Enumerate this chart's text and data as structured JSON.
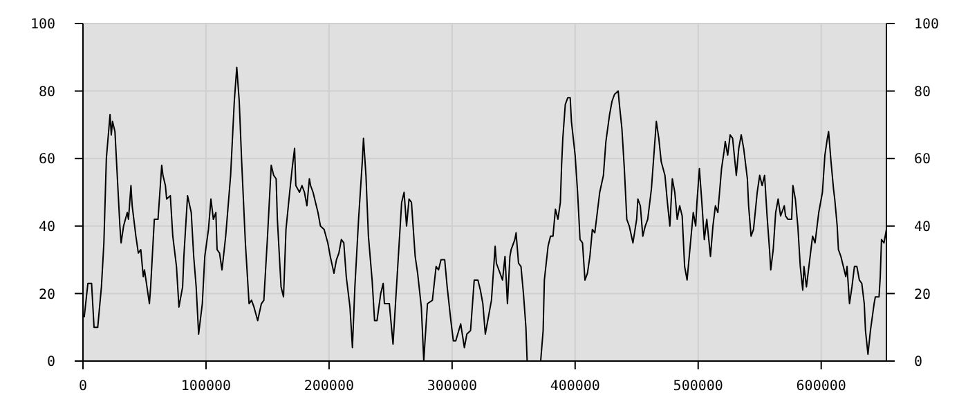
{
  "chart_data": {
    "type": "line",
    "color": "#000000",
    "marker": "none",
    "line_style": "solid",
    "grid": true,
    "xlim": [
      0,
      653000
    ],
    "xticks": [
      0,
      100000,
      200000,
      300000,
      400000,
      500000,
      600000
    ],
    "ylim": [
      0,
      100
    ],
    "yticks": [
      0,
      20,
      40,
      60,
      80,
      100
    ],
    "y2lim": [
      0,
      100
    ],
    "y2ticks": [
      0,
      20,
      40,
      60,
      80,
      100
    ],
    "x": [
      1000,
      4000,
      7000,
      9000,
      12000,
      15000,
      17000,
      19000,
      22000,
      23000,
      24000,
      26000,
      28000,
      30000,
      31000,
      33000,
      36000,
      37000,
      39000,
      40000,
      43000,
      45000,
      47000,
      49000,
      50000,
      52000,
      54000,
      55000,
      58000,
      61000,
      64000,
      65000,
      67000,
      68000,
      71000,
      73000,
      76000,
      78000,
      81000,
      82000,
      85000,
      88000,
      90000,
      92000,
      94000,
      97000,
      99000,
      102000,
      104000,
      106000,
      108000,
      109000,
      111000,
      113000,
      116000,
      120000,
      123000,
      125000,
      127000,
      129000,
      132000,
      135000,
      137000,
      139000,
      142000,
      145000,
      147000,
      150000,
      153000,
      155000,
      157000,
      158000,
      161000,
      163000,
      165000,
      168000,
      170000,
      172000,
      173000,
      176000,
      178000,
      180000,
      182000,
      184000,
      185000,
      187000,
      191000,
      193000,
      196000,
      199000,
      201000,
      204000,
      206000,
      208000,
      210000,
      212000,
      214000,
      217000,
      219000,
      221000,
      224000,
      227000,
      228000,
      230000,
      232000,
      235000,
      237000,
      239000,
      242000,
      244000,
      245000,
      249000,
      252000,
      254000,
      257000,
      259000,
      261000,
      263000,
      265000,
      267000,
      270000,
      272000,
      275000,
      277000,
      278000,
      280000,
      284000,
      287000,
      289000,
      291000,
      294000,
      296000,
      299000,
      301000,
      303000,
      307000,
      310000,
      312000,
      315000,
      318000,
      321000,
      323000,
      325000,
      327000,
      330000,
      332000,
      335000,
      336000,
      338000,
      341000,
      343000,
      345000,
      347000,
      348000,
      351000,
      352000,
      354000,
      356000,
      358000,
      360000,
      361000,
      372000,
      374000,
      375000,
      378000,
      380000,
      382000,
      384000,
      386000,
      388000,
      389000,
      390000,
      392000,
      394000,
      396000,
      397000,
      400000,
      402000,
      404000,
      406000,
      408000,
      410000,
      412000,
      414000,
      416000,
      418000,
      420000,
      423000,
      425000,
      428000,
      430000,
      432000,
      435000,
      436000,
      438000,
      440000,
      442000,
      444000,
      447000,
      450000,
      451000,
      453000,
      455000,
      457000,
      459000,
      462000,
      464000,
      466000,
      468000,
      470000,
      473000,
      475000,
      477000,
      479000,
      481000,
      483000,
      485000,
      487000,
      489000,
      491000,
      494000,
      496000,
      498000,
      499000,
      501000,
      503000,
      505000,
      507000,
      510000,
      512000,
      514000,
      516000,
      519000,
      521000,
      522000,
      524000,
      526000,
      528000,
      531000,
      533000,
      535000,
      537000,
      540000,
      541000,
      543000,
      545000,
      548000,
      550000,
      552000,
      554000,
      556000,
      558000,
      559000,
      561000,
      563000,
      565000,
      567000,
      570000,
      571000,
      573000,
      576000,
      577000,
      579000,
      581000,
      583000,
      585000,
      586000,
      588000,
      590000,
      593000,
      595000,
      598000,
      601000,
      603000,
      605000,
      606000,
      608000,
      610000,
      611000,
      613000,
      614000,
      616000,
      618000,
      620000,
      621000,
      623000,
      625000,
      627000,
      629000,
      631000,
      633000,
      635000,
      636000,
      638000,
      640000,
      643000,
      644000,
      647000,
      648000,
      649000,
      651000,
      653000
    ],
    "values": [
      13,
      23,
      23,
      10,
      10,
      22,
      35,
      60,
      73,
      67,
      71,
      68,
      54,
      40,
      35,
      40,
      44,
      42,
      52,
      46,
      37,
      32,
      33,
      25,
      27,
      22,
      17,
      22,
      42,
      42,
      58,
      55,
      52,
      48,
      49,
      37,
      28,
      16,
      22,
      31,
      49,
      44,
      31,
      22,
      8,
      17,
      31,
      39,
      48,
      42,
      44,
      33,
      32,
      27,
      37,
      55,
      77,
      87,
      77,
      59,
      35,
      17,
      18,
      16,
      12,
      17,
      18,
      37,
      58,
      55,
      54,
      42,
      22,
      19,
      39,
      50,
      57,
      63,
      52,
      50,
      52,
      50,
      46,
      54,
      52,
      50,
      44,
      40,
      39,
      35,
      31,
      26,
      30,
      32,
      36,
      35,
      25,
      16,
      4,
      22,
      42,
      59,
      66,
      55,
      37,
      24,
      12,
      12,
      20,
      23,
      17,
      17,
      5,
      17,
      35,
      47,
      50,
      40,
      48,
      47,
      31,
      26,
      16,
      0,
      6,
      17,
      18,
      28,
      27,
      30,
      30,
      22,
      12,
      6,
      6,
      11,
      4,
      8,
      9,
      24,
      24,
      21,
      17,
      8,
      14,
      18,
      34,
      29,
      27,
      24,
      31,
      17,
      31,
      33,
      36,
      38,
      29,
      28,
      20,
      10,
      0,
      0,
      9,
      24,
      34,
      37,
      37,
      45,
      42,
      47,
      58,
      66,
      76,
      78,
      78,
      71,
      61,
      50,
      36,
      35,
      24,
      26,
      31,
      39,
      38,
      44,
      50,
      55,
      65,
      73,
      77,
      79,
      80,
      76,
      69,
      57,
      42,
      40,
      35,
      42,
      48,
      46,
      37,
      40,
      42,
      51,
      61,
      71,
      66,
      59,
      55,
      47,
      40,
      54,
      50,
      42,
      46,
      43,
      28,
      24,
      36,
      44,
      40,
      47,
      57,
      47,
      36,
      42,
      31,
      40,
      46,
      44,
      57,
      62,
      65,
      61,
      67,
      66,
      55,
      63,
      67,
      63,
      54,
      46,
      37,
      39,
      50,
      55,
      52,
      55,
      43,
      33,
      27,
      33,
      44,
      48,
      43,
      46,
      43,
      42,
      42,
      52,
      48,
      40,
      28,
      21,
      28,
      22,
      28,
      37,
      35,
      44,
      50,
      61,
      66,
      68,
      59,
      51,
      48,
      40,
      33,
      31,
      28,
      25,
      28,
      17,
      22,
      28,
      28,
      24,
      23,
      17,
      9,
      2,
      9,
      17,
      19,
      19,
      25,
      36,
      35,
      39
    ]
  }
}
